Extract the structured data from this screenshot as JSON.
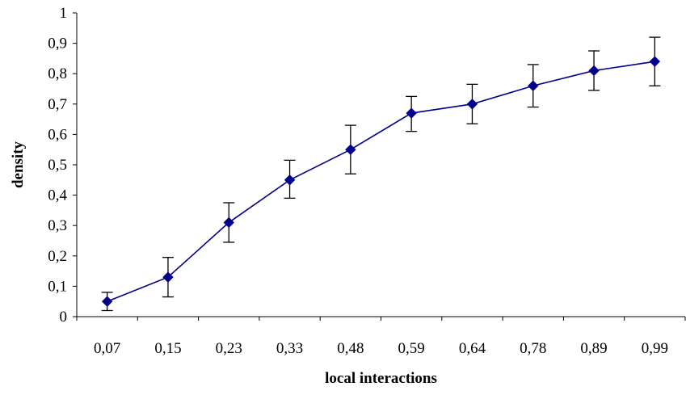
{
  "chart_data": {
    "type": "line",
    "title": "",
    "xlabel": "local interactions",
    "ylabel": "density",
    "categories": [
      "0,07",
      "0,15",
      "0,23",
      "0,33",
      "0,48",
      "0,59",
      "0,64",
      "0,78",
      "0,89",
      "0,99"
    ],
    "series": [
      {
        "values": [
          0.05,
          0.13,
          0.31,
          0.45,
          0.55,
          0.67,
          0.7,
          0.76,
          0.81,
          0.84
        ],
        "error_low": [
          0.02,
          0.065,
          0.245,
          0.39,
          0.47,
          0.61,
          0.635,
          0.69,
          0.745,
          0.76
        ],
        "error_high": [
          0.08,
          0.195,
          0.375,
          0.515,
          0.63,
          0.725,
          0.765,
          0.83,
          0.875,
          0.92
        ],
        "color": "#00008B"
      }
    ],
    "ylim": [
      0,
      1
    ],
    "yticks": [
      0,
      0.1,
      0.2,
      0.3,
      0.4,
      0.5,
      0.6,
      0.7,
      0.8,
      0.9,
      1
    ],
    "ytick_labels": [
      "0",
      "0,1",
      "0,2",
      "0,3",
      "0,4",
      "0,5",
      "0,6",
      "0,7",
      "0,8",
      "0,9",
      "1"
    ],
    "grid": false,
    "legend": "none",
    "marker": "diamond"
  }
}
